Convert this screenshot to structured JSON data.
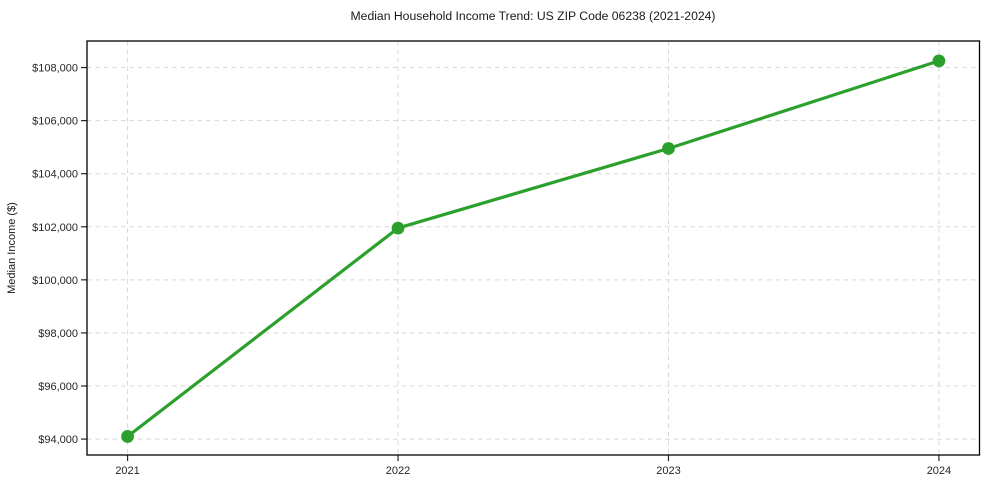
{
  "chart_data": {
    "type": "line",
    "title": "Median Household Income Trend: US ZIP Code 06238 (2021-2024)",
    "xlabel": "",
    "ylabel": "Median Income ($)",
    "categories": [
      "2021",
      "2022",
      "2023",
      "2024"
    ],
    "x": [
      2021,
      2022,
      2023,
      2024
    ],
    "values": [
      94100,
      101950,
      104950,
      108250
    ],
    "y_ticks": [
      94000,
      96000,
      98000,
      100000,
      102000,
      104000,
      106000,
      108000
    ],
    "y_tick_labels": [
      "$94,000",
      "$96,000",
      "$98,000",
      "$100,000",
      "$102,000",
      "$104,000",
      "$106,000",
      "$108,000"
    ],
    "xlim": [
      2020.85,
      2024.15
    ],
    "ylim": [
      93400,
      109000
    ],
    "grid": true,
    "grid_style": "dashed",
    "legend": "none",
    "colors": {
      "line": "#2ca02c",
      "marker": "#2ca02c",
      "grid": "#d8d8d8",
      "axis_border": "#000000",
      "tick": "#262626",
      "text": "#262626",
      "background": "#ffffff"
    }
  }
}
